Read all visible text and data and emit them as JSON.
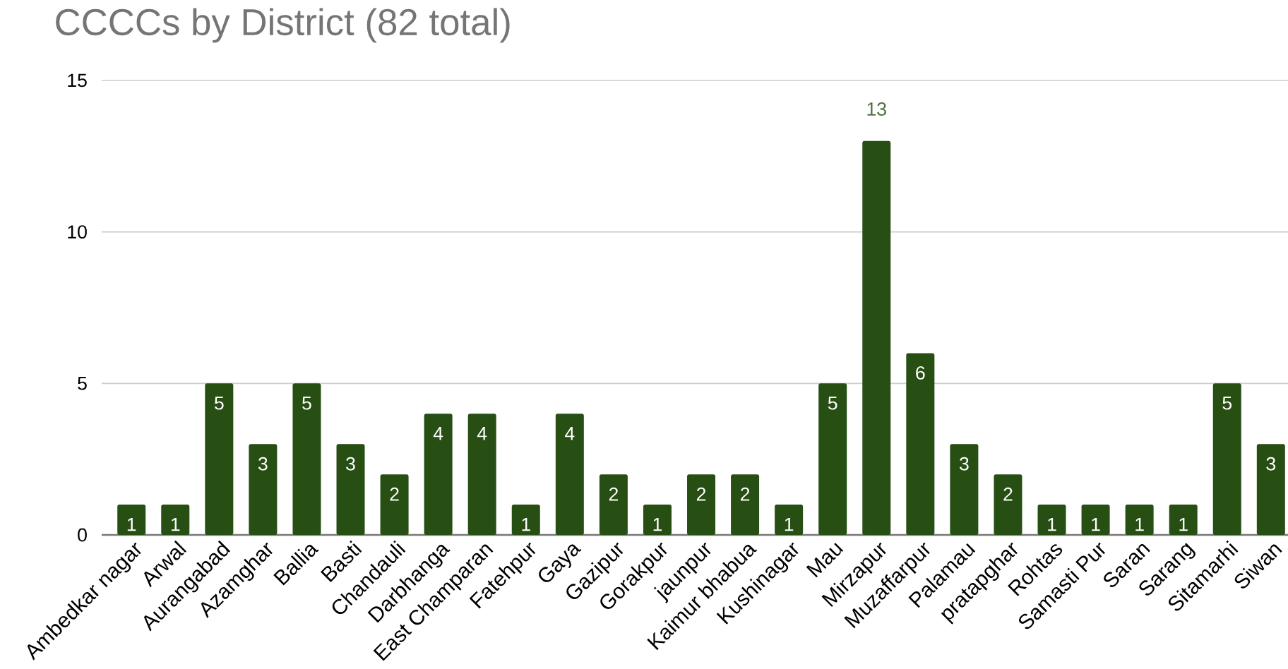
{
  "chart_data": {
    "type": "bar",
    "title": "CCCCs by District (82 total)",
    "categories": [
      "Ambedkar nagar",
      "Arwal",
      "Aurangabad",
      "Azamghar",
      "Ballia",
      "Basti",
      "Chandauli",
      "Darbhanga",
      "East Champaran",
      "Fatehpur",
      "Gaya",
      "Gazipur",
      "Gorakpur",
      "jaunpur",
      "Kaimur bhabua",
      "Kushinagar",
      "Mau",
      "Mirzapur",
      "Muzaffarpur",
      "Palamau",
      "pratapghar",
      "Rohtas",
      "Samasti Pur",
      "Saran",
      "Sarang",
      "Sitamarhi",
      "Siwan"
    ],
    "values": [
      1,
      1,
      5,
      3,
      5,
      3,
      2,
      4,
      4,
      1,
      4,
      2,
      1,
      2,
      2,
      1,
      5,
      13,
      6,
      3,
      2,
      1,
      1,
      1,
      1,
      5,
      3
    ],
    "color": "#274e13",
    "ylim": [
      0,
      15
    ],
    "yticks": [
      0,
      5,
      10,
      15
    ],
    "grid": "y",
    "data_labels": true
  }
}
